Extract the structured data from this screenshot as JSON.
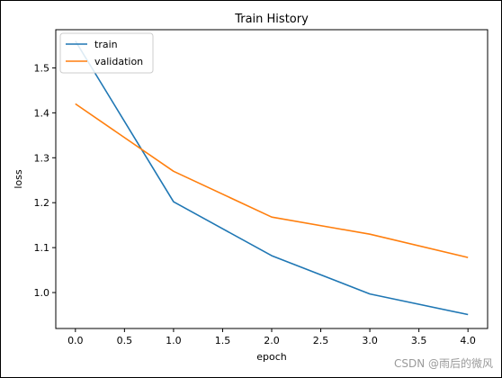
{
  "chart_data": {
    "type": "line",
    "title": "Train History",
    "xlabel": "epoch",
    "ylabel": "loss",
    "x": [
      0,
      1,
      2,
      3,
      4
    ],
    "xlim": [
      -0.2,
      4.2
    ],
    "ylim": [
      0.92,
      1.585
    ],
    "xticks": [
      0.0,
      0.5,
      1.0,
      1.5,
      2.0,
      2.5,
      3.0,
      3.5,
      4.0
    ],
    "xtick_labels": [
      "0.0",
      "0.5",
      "1.0",
      "1.5",
      "2.0",
      "2.5",
      "3.0",
      "3.5",
      "4.0"
    ],
    "yticks": [
      1.0,
      1.1,
      1.2,
      1.3,
      1.4,
      1.5
    ],
    "ytick_labels": [
      "1.0",
      "1.1",
      "1.2",
      "1.3",
      "1.4",
      "1.5"
    ],
    "grid": false,
    "legend_position": "top-left",
    "series": [
      {
        "name": "train",
        "color": "#1f77b4",
        "values": [
          1.56,
          1.202,
          1.082,
          0.997,
          0.951
        ]
      },
      {
        "name": "validation",
        "color": "#ff7f0e",
        "values": [
          1.42,
          1.27,
          1.168,
          1.13,
          1.078
        ]
      }
    ]
  },
  "watermark": "CSDN @雨后的微风"
}
